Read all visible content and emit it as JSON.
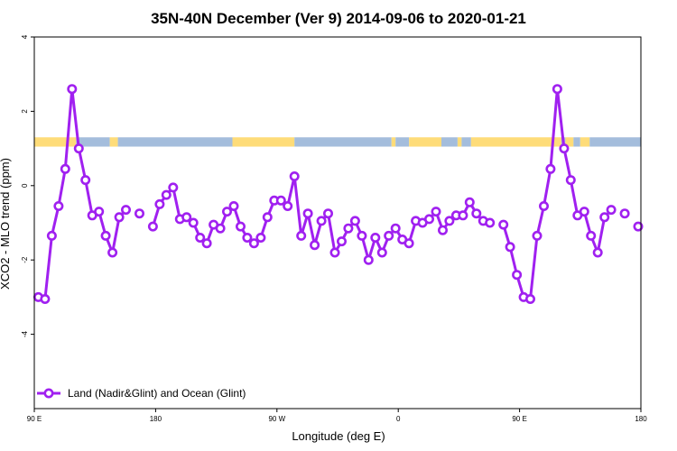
{
  "chart_data": {
    "type": "line",
    "title": "35N-40N December (Ver 9)   2014-09-06 to 2020-01-21",
    "xlabel": "Longitude (deg E)",
    "ylabel": "XCO2 - MLO trend (ppm)",
    "xlim": [
      90,
      540
    ],
    "ylim": [
      -6,
      4
    ],
    "x_ticks": [
      {
        "value": 90,
        "label": "90 E"
      },
      {
        "value": 180,
        "label": "180"
      },
      {
        "value": 270,
        "label": "90 W"
      },
      {
        "value": 360,
        "label": "0"
      },
      {
        "value": 450,
        "label": "90 E"
      },
      {
        "value": 540,
        "label": "180"
      }
    ],
    "y_ticks": [
      {
        "value": 4,
        "label": "4"
      },
      {
        "value": 2,
        "label": "2"
      },
      {
        "value": 0,
        "label": "0"
      },
      {
        "value": -2,
        "label": "-2"
      },
      {
        "value": -4,
        "label": "-4"
      }
    ],
    "grid": false,
    "legend_position": "bottom-left",
    "colors": {
      "series": "#a020f0",
      "land": "#a4bddc",
      "ocean": "#fedc79"
    },
    "series": [
      {
        "name": "Land (Nadir&Glint) and Ocean (Glint)",
        "points": [
          [
            93,
            -3.0
          ],
          [
            98,
            -3.05
          ],
          [
            103,
            -1.35
          ],
          [
            108,
            -0.55
          ],
          [
            113,
            0.45
          ],
          [
            118,
            2.6
          ],
          [
            123,
            1.0
          ],
          [
            128,
            0.15
          ],
          [
            133,
            -0.8
          ],
          [
            138,
            -0.7
          ],
          [
            143,
            -1.35
          ],
          [
            148,
            -1.8
          ],
          [
            153,
            -0.85
          ],
          [
            158,
            -0.65
          ],
          null,
          [
            168,
            -0.75
          ],
          null,
          [
            178,
            -1.1
          ],
          [
            183,
            -0.5
          ],
          [
            188,
            -0.25
          ],
          [
            193,
            -0.05
          ],
          [
            198,
            -0.9
          ],
          [
            203,
            -0.85
          ],
          [
            208,
            -1.0
          ],
          [
            213,
            -1.4
          ],
          [
            218,
            -1.55
          ],
          [
            223,
            -1.05
          ],
          [
            228,
            -1.15
          ],
          [
            233,
            -0.7
          ],
          [
            238,
            -0.55
          ],
          [
            243,
            -1.1
          ],
          [
            248,
            -1.4
          ],
          [
            253,
            -1.55
          ],
          [
            258,
            -1.4
          ],
          [
            263,
            -0.85
          ],
          [
            268,
            -0.4
          ],
          [
            273,
            -0.4
          ],
          [
            278,
            -0.55
          ],
          [
            283,
            0.25
          ],
          [
            288,
            -1.35
          ],
          [
            293,
            -0.75
          ],
          [
            298,
            -1.6
          ],
          [
            303,
            -0.95
          ],
          [
            308,
            -0.75
          ],
          [
            313,
            -1.8
          ],
          [
            318,
            -1.5
          ],
          [
            323,
            -1.15
          ],
          [
            328,
            -0.95
          ],
          [
            333,
            -1.35
          ],
          [
            338,
            -2.0
          ],
          [
            343,
            -1.4
          ],
          [
            348,
            -1.8
          ],
          [
            353,
            -1.35
          ],
          [
            358,
            -1.15
          ],
          [
            363,
            -1.45
          ],
          [
            368,
            -1.55
          ],
          [
            373,
            -0.95
          ],
          [
            378,
            -1.0
          ],
          [
            383,
            -0.9
          ],
          [
            388,
            -0.7
          ],
          [
            393,
            -1.2
          ],
          [
            398,
            -0.95
          ],
          [
            403,
            -0.8
          ],
          [
            408,
            -0.8
          ],
          [
            413,
            -0.45
          ],
          [
            418,
            -0.75
          ],
          [
            423,
            -0.95
          ],
          [
            428,
            -1.0
          ],
          null,
          [
            438,
            -1.05
          ],
          [
            443,
            -1.65
          ],
          [
            448,
            -2.4
          ],
          [
            453,
            -3.0
          ],
          [
            458,
            -3.05
          ],
          [
            463,
            -1.35
          ],
          [
            468,
            -0.55
          ],
          [
            473,
            0.45
          ],
          [
            478,
            2.6
          ],
          [
            483,
            1.0
          ],
          [
            488,
            0.15
          ],
          [
            493,
            -0.8
          ],
          [
            498,
            -0.7
          ],
          [
            503,
            -1.35
          ],
          [
            508,
            -1.8
          ],
          [
            513,
            -0.85
          ],
          [
            518,
            -0.65
          ],
          null,
          [
            528,
            -0.75
          ],
          null,
          [
            538,
            -1.1
          ]
        ]
      }
    ],
    "surface_band": {
      "y_range": [
        1.05,
        1.3
      ],
      "segments": [
        {
          "type": "ocean",
          "from": 90,
          "to": 121
        },
        {
          "type": "land",
          "from": 121,
          "to": 146
        },
        {
          "type": "ocean",
          "from": 146,
          "to": 152
        },
        {
          "type": "land",
          "from": 152,
          "to": 237
        },
        {
          "type": "ocean",
          "from": 237,
          "to": 283
        },
        {
          "type": "land",
          "from": 283,
          "to": 355
        },
        {
          "type": "ocean",
          "from": 355,
          "to": 358
        },
        {
          "type": "land",
          "from": 358,
          "to": 368
        },
        {
          "type": "ocean",
          "from": 368,
          "to": 392
        },
        {
          "type": "land",
          "from": 392,
          "to": 404
        },
        {
          "type": "ocean",
          "from": 404,
          "to": 407
        },
        {
          "type": "land",
          "from": 407,
          "to": 414
        },
        {
          "type": "ocean",
          "from": 414,
          "to": 481
        },
        {
          "type": "land",
          "from": 481,
          "to": 484
        },
        {
          "type": "ocean",
          "from": 484,
          "to": 490
        },
        {
          "type": "land",
          "from": 490,
          "to": 495
        },
        {
          "type": "ocean",
          "from": 495,
          "to": 502
        },
        {
          "type": "land",
          "from": 502,
          "to": 540
        }
      ]
    }
  }
}
